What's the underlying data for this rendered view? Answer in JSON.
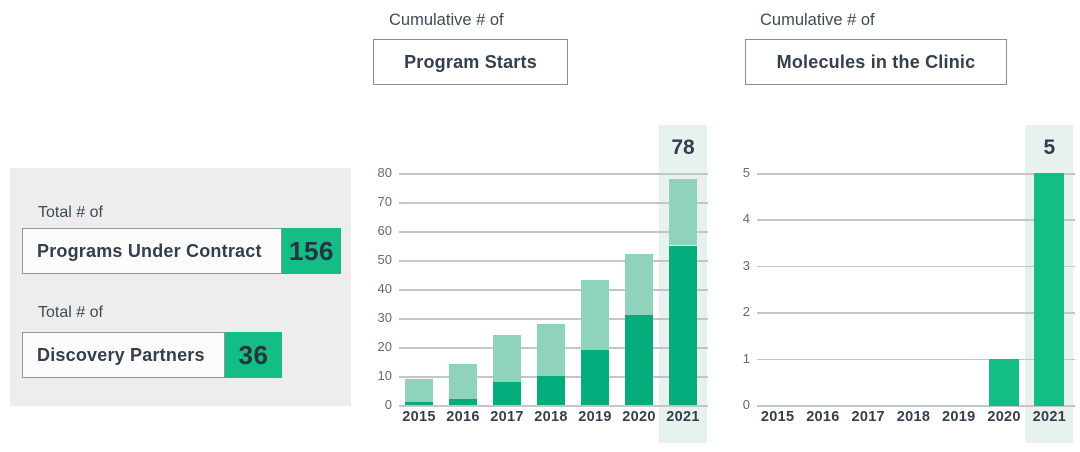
{
  "colors": {
    "green_bright": "#14BD85",
    "green_dark": "#04AC7C",
    "green_light": "#8FD3BC",
    "band": "#E7F1EE",
    "panel": "#EDEDED",
    "box_border": "#8D9396",
    "grid": "#C2C6CA",
    "text_dark": "#333F4D",
    "text_mid": "#3E4A54",
    "text_gray": "#616B75"
  },
  "stats_panel": {
    "items": [
      {
        "prefix": "Total # of",
        "label": "Programs Under Contract",
        "value": "156"
      },
      {
        "prefix": "Total # of",
        "label": "Discovery Partners",
        "value": "36"
      }
    ]
  },
  "chart_data": [
    {
      "type": "bar",
      "stacked": true,
      "title_prefix": "Cumulative # of",
      "title": "Program Starts",
      "categories": [
        "2015",
        "2016",
        "2017",
        "2018",
        "2019",
        "2020",
        "2021"
      ],
      "series": [
        {
          "name": "lower-segment",
          "color": "#04AC7C",
          "values": [
            1,
            2,
            8,
            10,
            19,
            31,
            55
          ]
        },
        {
          "name": "upper-segment",
          "color": "#8FD3BC",
          "values": [
            8,
            12,
            16,
            18,
            24,
            21,
            23
          ]
        }
      ],
      "totals": [
        9,
        14,
        24,
        28,
        43,
        52,
        78
      ],
      "ylim": [
        0,
        80
      ],
      "ytick_step": 10,
      "grid": true,
      "legend": "none",
      "highlight_category": "2021",
      "annotation": "78"
    },
    {
      "type": "bar",
      "stacked": false,
      "title_prefix": "Cumulative # of",
      "title": "Molecules in the Clinic",
      "categories": [
        "2015",
        "2016",
        "2017",
        "2018",
        "2019",
        "2020",
        "2021"
      ],
      "series": [
        {
          "name": "molecules",
          "color": "#14BD85",
          "values": [
            0,
            0,
            0,
            0,
            0,
            1,
            5
          ]
        }
      ],
      "totals": [
        0,
        0,
        0,
        0,
        0,
        1,
        5
      ],
      "ylim": [
        0,
        5
      ],
      "ytick_step": 1,
      "grid": true,
      "legend": "none",
      "highlight_category": "2021",
      "annotation": "5"
    }
  ]
}
